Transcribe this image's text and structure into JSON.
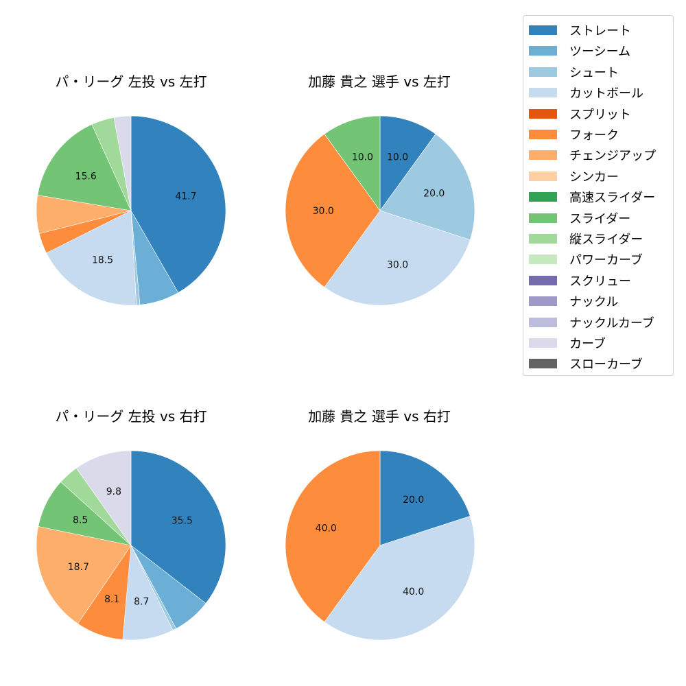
{
  "chart_data": [
    {
      "type": "pie",
      "title": "パ・リーグ 左投 vs 左打",
      "categories": [
        "ストレート",
        "ツーシーム",
        "シュート",
        "カットボール",
        "フォーク",
        "チェンジアップ",
        "スライダー",
        "縦スライダー",
        "カーブ"
      ],
      "values": [
        41.7,
        6.8,
        0.6,
        18.5,
        3.5,
        6.5,
        15.6,
        3.9,
        2.9
      ],
      "labels_shown": [
        "41.7",
        "",
        "",
        "18.5",
        "",
        "",
        "15.6",
        "",
        ""
      ],
      "colors": [
        "#3182bd",
        "#6baed6",
        "#9ecae1",
        "#c6dbef",
        "#fd8d3c",
        "#fdae6b",
        "#74c476",
        "#a1d99b",
        "#dadaeb"
      ]
    },
    {
      "type": "pie",
      "title": "加藤 貴之 選手 vs 左打",
      "categories": [
        "ストレート",
        "シュート",
        "カットボール",
        "フォーク",
        "スライダー"
      ],
      "values": [
        10.0,
        20.0,
        30.0,
        30.0,
        10.0
      ],
      "labels_shown": [
        "10.0",
        "20.0",
        "30.0",
        "30.0",
        "10.0"
      ],
      "colors": [
        "#3182bd",
        "#9ecae1",
        "#c6dbef",
        "#fd8d3c",
        "#74c476"
      ]
    },
    {
      "type": "pie",
      "title": "パ・リーグ 左投 vs 右打",
      "categories": [
        "ストレート",
        "ツーシーム",
        "シュート",
        "カットボール",
        "フォーク",
        "チェンジアップ",
        "スライダー",
        "縦スライダー",
        "カーブ"
      ],
      "values": [
        35.5,
        6.6,
        0.6,
        8.7,
        8.1,
        18.7,
        8.5,
        3.5,
        9.8
      ],
      "labels_shown": [
        "35.5",
        "",
        "",
        "8.7",
        "8.1",
        "18.7",
        "8.5",
        "",
        "9.8"
      ],
      "colors": [
        "#3182bd",
        "#6baed6",
        "#9ecae1",
        "#c6dbef",
        "#fd8d3c",
        "#fdae6b",
        "#74c476",
        "#a1d99b",
        "#dadaeb"
      ]
    },
    {
      "type": "pie",
      "title": "加藤 貴之 選手 vs 右打",
      "categories": [
        "ストレート",
        "カットボール",
        "フォーク"
      ],
      "values": [
        20.0,
        40.0,
        40.0
      ],
      "labels_shown": [
        "20.0",
        "40.0",
        "40.0"
      ],
      "colors": [
        "#3182bd",
        "#c6dbef",
        "#fd8d3c"
      ]
    }
  ],
  "titles": {
    "top_left": "パ・リーグ 左投 vs 左打",
    "top_right": "加藤 貴之 選手 vs 左打",
    "bottom_left": "パ・リーグ 左投 vs 右打",
    "bottom_right": "加藤 貴之 選手 vs 右打"
  },
  "legend": {
    "items": [
      {
        "label": "ストレート",
        "color": "#3182bd"
      },
      {
        "label": "ツーシーム",
        "color": "#6baed6"
      },
      {
        "label": "シュート",
        "color": "#9ecae1"
      },
      {
        "label": "カットボール",
        "color": "#c6dbef"
      },
      {
        "label": "スプリット",
        "color": "#e6550d"
      },
      {
        "label": "フォーク",
        "color": "#fd8d3c"
      },
      {
        "label": "チェンジアップ",
        "color": "#fdae6b"
      },
      {
        "label": "シンカー",
        "color": "#fdd0a2"
      },
      {
        "label": "高速スライダー",
        "color": "#31a354"
      },
      {
        "label": "スライダー",
        "color": "#74c476"
      },
      {
        "label": "縦スライダー",
        "color": "#a1d99b"
      },
      {
        "label": "パワーカーブ",
        "color": "#c7e9c0"
      },
      {
        "label": "スクリュー",
        "color": "#756bb1"
      },
      {
        "label": "ナックル",
        "color": "#9e9ac8"
      },
      {
        "label": "ナックルカーブ",
        "color": "#bcbddc"
      },
      {
        "label": "カーブ",
        "color": "#dadaeb"
      },
      {
        "label": "スローカーブ",
        "color": "#636363"
      }
    ]
  }
}
